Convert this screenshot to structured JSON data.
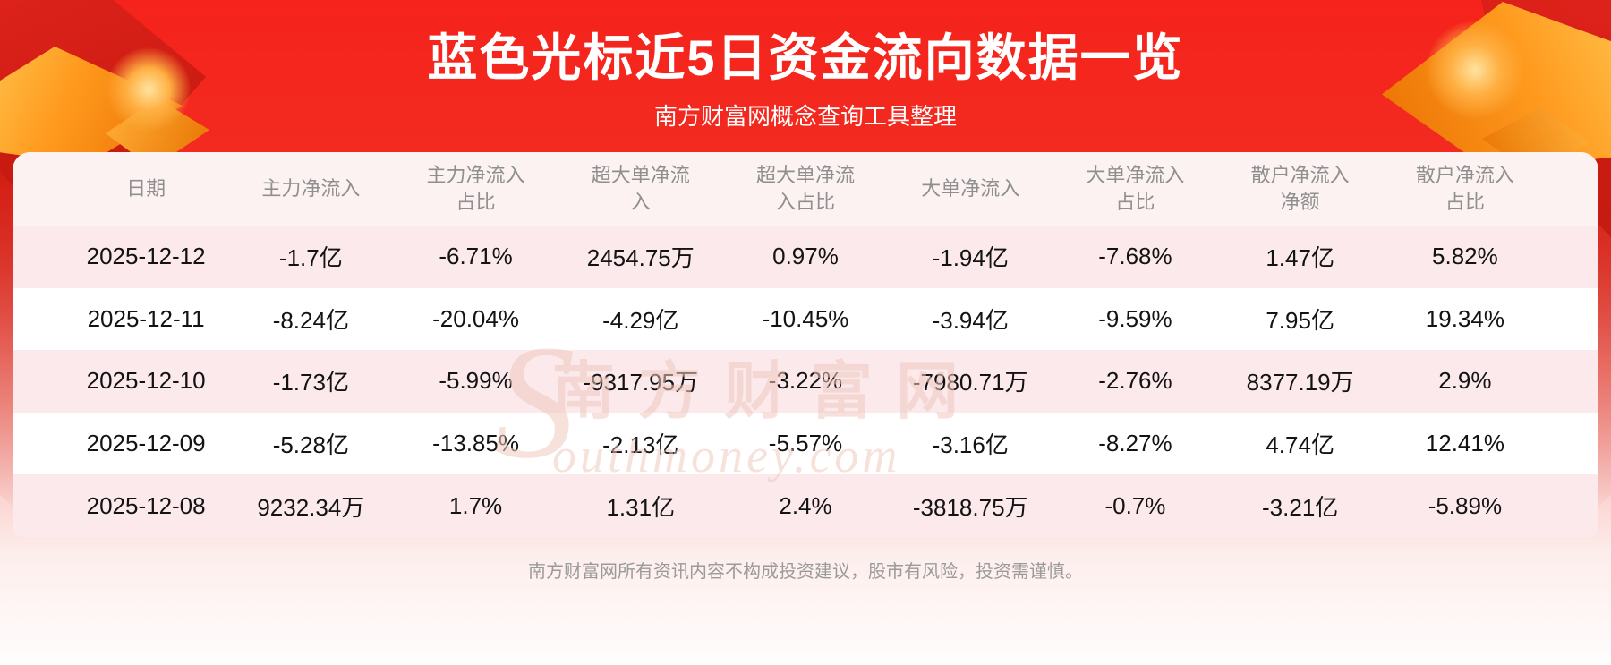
{
  "page": {
    "title": "蓝色光标近5日资金流向数据一览",
    "subtitle": "南方财富网概念查询工具整理",
    "footer_disclaimer": "南方财富网所有资讯内容不构成投资建议，股市有风险，投资需谨慎。"
  },
  "watermark": {
    "logo_letter": "S",
    "text_cn": "南方财富网",
    "text_en": "outhmoney.com"
  },
  "chart_data": {
    "type": "table",
    "title": "蓝色光标近5日资金流向数据一览",
    "columns": [
      "日期",
      "主力净流入",
      "主力净流入占比",
      "超大单净流入",
      "超大单净流入占比",
      "大单净流入",
      "大单净流入占比",
      "散户净流入净额",
      "散户净流入占比"
    ],
    "rows": [
      [
        "2025-12-12",
        "-1.7亿",
        "-6.71%",
        "2454.75万",
        "0.97%",
        "-1.94亿",
        "-7.68%",
        "1.47亿",
        "5.82%"
      ],
      [
        "2025-12-11",
        "-8.24亿",
        "-20.04%",
        "-4.29亿",
        "-10.45%",
        "-3.94亿",
        "-9.59%",
        "7.95亿",
        "19.34%"
      ],
      [
        "2025-12-10",
        "-1.73亿",
        "-5.99%",
        "-9317.95万",
        "-3.22%",
        "-7980.71万",
        "-2.76%",
        "8377.19万",
        "2.9%"
      ],
      [
        "2025-12-09",
        "-5.28亿",
        "-13.85%",
        "-2.13亿",
        "-5.57%",
        "-3.16亿",
        "-8.27%",
        "4.74亿",
        "12.41%"
      ],
      [
        "2025-12-08",
        "9232.34万",
        "1.7%",
        "1.31亿",
        "2.4%",
        "-3818.75万",
        "-0.7%",
        "-3.21亿",
        "-5.89%"
      ]
    ]
  },
  "colors": {
    "banner_red_top": "#f5231b",
    "deco_gold": "#ff9a1e",
    "glow": "#ffe3a0",
    "bg_fade_mid": "#f5968c",
    "bg_fade_light": "#fdeeec",
    "table_bg": "#ffffff",
    "header_row_bg": "#fdf2f2",
    "row_stripe": "#fbe9ec",
    "header_text": "#8f8f8f",
    "cell_text": "#131313",
    "title_text": "#ffffff",
    "footer_text": "#9a9a9a",
    "watermark": "#f0c9bf"
  }
}
